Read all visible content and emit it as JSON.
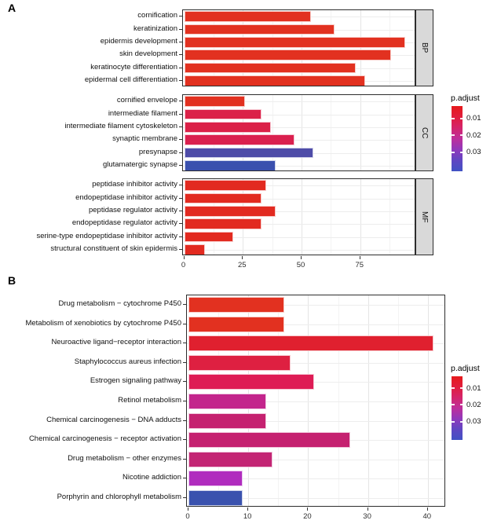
{
  "figure": {
    "panel_a_label": "A",
    "panel_b_label": "B"
  },
  "legend": {
    "title": "p.adjust",
    "tick_labels": [
      "0.01",
      "0.02",
      "0.03"
    ],
    "gradient_top_to_bottom": [
      "#e6191b",
      "#e11e3e",
      "#d4246b",
      "#bd2e9b",
      "#9038bb",
      "#5f46c2",
      "#4152c4"
    ]
  },
  "chart_data": [
    {
      "type": "bar",
      "orientation": "horizontal",
      "panel": "A",
      "description": "GO term enrichment, faceted by ontology (BP / CC / MF), bar length = gene count, fill = p.adjust",
      "x_axis": {
        "ticks": [
          0,
          25,
          50,
          75
        ],
        "range": [
          0,
          99
        ],
        "grid": true
      },
      "legend_title": "p.adjust",
      "facets": [
        {
          "strip": "BP",
          "rows": [
            {
              "label": "cornification",
              "value": 54,
              "color": "#e23120"
            },
            {
              "label": "keratinization",
              "value": 64,
              "color": "#e23120"
            },
            {
              "label": "epidermis development",
              "value": 94,
              "color": "#e23120"
            },
            {
              "label": "skin development",
              "value": 88,
              "color": "#e23120"
            },
            {
              "label": "keratinocyte differentiation",
              "value": 73,
              "color": "#e23120"
            },
            {
              "label": "epidermal cell differentiation",
              "value": 77,
              "color": "#e23120"
            }
          ]
        },
        {
          "strip": "CC",
          "rows": [
            {
              "label": "cornified envelope",
              "value": 26,
              "color": "#e23120"
            },
            {
              "label": "intermediate filament",
              "value": 33,
              "color": "#db2148"
            },
            {
              "label": "intermediate filament cytoskeleton",
              "value": 37,
              "color": "#db2148"
            },
            {
              "label": "synaptic membrane",
              "value": 47,
              "color": "#da204e"
            },
            {
              "label": "presynapse",
              "value": 55,
              "color": "#4e4ca8"
            },
            {
              "label": "glutamatergic synapse",
              "value": 39,
              "color": "#3a50ae"
            }
          ]
        },
        {
          "strip": "MF",
          "rows": [
            {
              "label": "peptidase inhibitor activity",
              "value": 35,
              "color": "#e22a20"
            },
            {
              "label": "endopeptidase inhibitor activity",
              "value": 33,
              "color": "#e22a20"
            },
            {
              "label": "peptidase regulator activity",
              "value": 39,
              "color": "#e22a20"
            },
            {
              "label": "endopeptidase regulator activity",
              "value": 33,
              "color": "#e22a20"
            },
            {
              "label": "serine-type endopeptidase inhibitor activity",
              "value": 21,
              "color": "#e22a20"
            },
            {
              "label": "structural constituent of skin epidermis",
              "value": 9,
              "color": "#e22a20"
            }
          ]
        }
      ]
    },
    {
      "type": "bar",
      "orientation": "horizontal",
      "panel": "B",
      "description": "KEGG pathway enrichment, bar length = gene count, fill = p.adjust",
      "x_axis": {
        "ticks": [
          0,
          10,
          20,
          30,
          40
        ],
        "range": [
          0,
          43
        ],
        "grid": true
      },
      "legend_title": "p.adjust",
      "rows": [
        {
          "label": "Drug metabolism − cytochrome P450",
          "value": 16,
          "color": "#e23120"
        },
        {
          "label": "Metabolism of xenobiotics by cytochrome P450",
          "value": 16,
          "color": "#e23120"
        },
        {
          "label": "Neuroactive ligand−receptor interaction",
          "value": 41,
          "color": "#e0202f"
        },
        {
          "label": "Staphylococcus aureus infection",
          "value": 17,
          "color": "#de2041"
        },
        {
          "label": "Estrogen signaling pathway",
          "value": 21,
          "color": "#de1c55"
        },
        {
          "label": "Retinol metabolism",
          "value": 13,
          "color": "#c3258c"
        },
        {
          "label": "Chemical carcinogenesis − DNA adducts",
          "value": 13,
          "color": "#c52170"
        },
        {
          "label": "Chemical carcinogenesis − receptor activation",
          "value": 27,
          "color": "#c52170"
        },
        {
          "label": "Drug metabolism − other enzymes",
          "value": 14,
          "color": "#c32574"
        },
        {
          "label": "Nicotine addiction",
          "value": 9,
          "color": "#b02cbe"
        },
        {
          "label": "Porphyrin and chlorophyll metabolism",
          "value": 9,
          "color": "#3a52ae"
        }
      ]
    }
  ]
}
